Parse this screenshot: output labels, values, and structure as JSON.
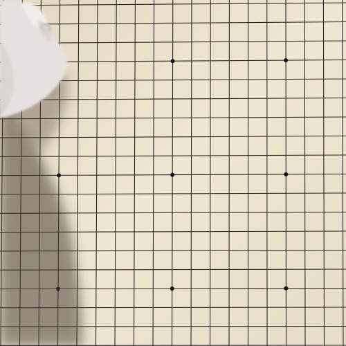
{
  "board": {
    "size": 19,
    "surface_color": "#ede3cf",
    "line_color": "#2a2520",
    "star_point_color": "#111111",
    "star_points": [
      {
        "col": 3,
        "row": 3
      },
      {
        "col": 9,
        "row": 3
      },
      {
        "col": 15,
        "row": 3
      },
      {
        "col": 3,
        "row": 9
      },
      {
        "col": 9,
        "row": 9
      },
      {
        "col": 15,
        "row": 9
      },
      {
        "col": 3,
        "row": 15
      },
      {
        "col": 9,
        "row": 15
      },
      {
        "col": 15,
        "row": 15
      }
    ],
    "stones": []
  },
  "scene": {
    "hand_icon": "hand-icon",
    "shadow_icon": "arm-shadow-icon",
    "skin_color": "#e6e1de",
    "shadow_color": "#4a4034"
  }
}
